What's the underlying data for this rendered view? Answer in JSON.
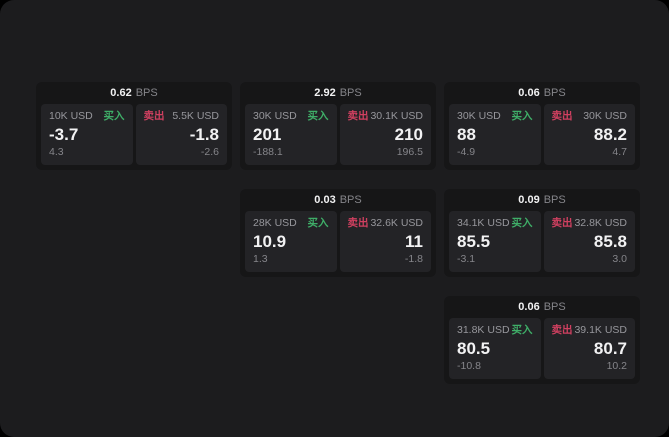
{
  "labels": {
    "unit": "BPS",
    "buy": "买入",
    "sell": "卖出"
  },
  "colors": {
    "page_bg": "#1c1c1e",
    "card_bg": "#161617",
    "tile_bg": "#232326",
    "buy": "#3fae68",
    "sell": "#d04060",
    "price": "#f2f2f3",
    "muted": "#97979c",
    "dim": "#85858a"
  },
  "cards": [
    {
      "bps": "0.62",
      "buy": {
        "size": "10K USD",
        "price": "-3.7",
        "sub": "4.3"
      },
      "sell": {
        "size": "5.5K USD",
        "price": "-1.8",
        "sub": "-2.6"
      }
    },
    {
      "bps": "2.92",
      "buy": {
        "size": "30K USD",
        "price": "201",
        "sub": "-188.1"
      },
      "sell": {
        "size": "30.1K USD",
        "price": "210",
        "sub": "196.5"
      }
    },
    {
      "bps": "0.06",
      "buy": {
        "size": "30K USD",
        "price": "88",
        "sub": "-4.9"
      },
      "sell": {
        "size": "30K USD",
        "price": "88.2",
        "sub": "4.7"
      }
    },
    {
      "bps": "0.03",
      "buy": {
        "size": "28K USD",
        "price": "10.9",
        "sub": "1.3"
      },
      "sell": {
        "size": "32.6K USD",
        "price": "11",
        "sub": "-1.8"
      }
    },
    {
      "bps": "0.09",
      "buy": {
        "size": "34.1K USD",
        "price": "85.5",
        "sub": "-3.1"
      },
      "sell": {
        "size": "32.8K USD",
        "price": "85.8",
        "sub": "3.0"
      }
    },
    {
      "bps": "0.06",
      "buy": {
        "size": "31.8K USD",
        "price": "80.5",
        "sub": "-10.8"
      },
      "sell": {
        "size": "39.1K USD",
        "price": "80.7",
        "sub": "10.2"
      }
    }
  ]
}
